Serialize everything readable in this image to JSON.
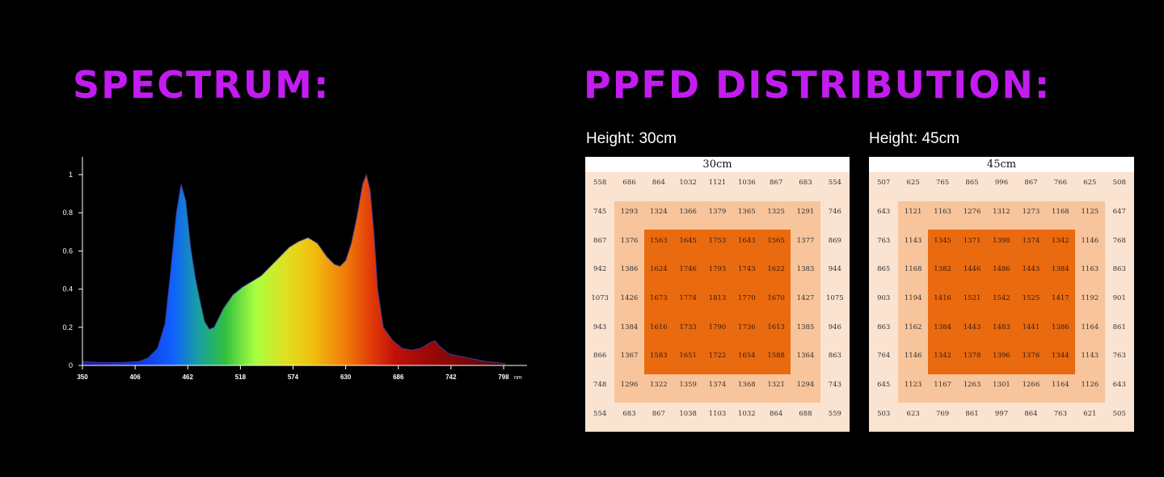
{
  "spectrum": {
    "heading": "SPECTRUM:",
    "chart_data": {
      "type": "area",
      "x_ticks": [
        "350",
        "406",
        "462",
        "518",
        "574",
        "630",
        "686",
        "742",
        "798"
      ],
      "x_unit": "nm",
      "y_ticks": [
        "0",
        "0.2",
        "0.4",
        "0.6",
        "0.8",
        "1"
      ],
      "xlim": [
        350,
        810
      ],
      "ylim": [
        0,
        1
      ],
      "x": [
        350,
        370,
        390,
        410,
        420,
        430,
        438,
        444,
        450,
        455,
        460,
        465,
        470,
        475,
        480,
        485,
        490,
        500,
        510,
        520,
        530,
        540,
        550,
        560,
        570,
        580,
        590,
        600,
        610,
        618,
        624,
        630,
        636,
        642,
        648,
        652,
        656,
        660,
        664,
        670,
        680,
        690,
        700,
        710,
        720,
        725,
        730,
        740,
        750,
        760,
        780,
        800
      ],
      "y": [
        0.02,
        0.015,
        0.015,
        0.02,
        0.04,
        0.09,
        0.22,
        0.5,
        0.8,
        0.95,
        0.86,
        0.62,
        0.46,
        0.34,
        0.23,
        0.19,
        0.2,
        0.3,
        0.37,
        0.41,
        0.44,
        0.47,
        0.52,
        0.57,
        0.62,
        0.65,
        0.67,
        0.64,
        0.57,
        0.53,
        0.52,
        0.55,
        0.64,
        0.78,
        0.95,
        1.0,
        0.92,
        0.7,
        0.4,
        0.2,
        0.13,
        0.09,
        0.08,
        0.09,
        0.12,
        0.13,
        0.1,
        0.06,
        0.05,
        0.04,
        0.02,
        0.01
      ]
    }
  },
  "ppfd": {
    "heading": "PPFD DISTRIBUTION:",
    "grids": [
      {
        "height_label": "Height: 30cm",
        "title": "30cm",
        "chart_data": {
          "type": "heatmap",
          "rows": [
            [
              558,
              686,
              864,
              1032,
              1121,
              1036,
              867,
              683,
              554
            ],
            [
              745,
              1293,
              1324,
              1366,
              1379,
              1365,
              1325,
              1291,
              746
            ],
            [
              867,
              1376,
              1563,
              1645,
              1753,
              1643,
              1565,
              1377,
              869
            ],
            [
              942,
              1386,
              1624,
              1746,
              1793,
              1743,
              1622,
              1383,
              944
            ],
            [
              1073,
              1426,
              1673,
              1774,
              1813,
              1770,
              1670,
              1427,
              1075
            ],
            [
              943,
              1384,
              1616,
              1733,
              1790,
              1736,
              1613,
              1385,
              946
            ],
            [
              866,
              1367,
              1583,
              1651,
              1722,
              1654,
              1588,
              1364,
              863
            ],
            [
              748,
              1296,
              1322,
              1359,
              1374,
              1368,
              1321,
              1294,
              743
            ],
            [
              554,
              683,
              867,
              1038,
              1103,
              1032,
              864,
              688,
              559
            ]
          ]
        }
      },
      {
        "height_label": "Height: 45cm",
        "title": "45cm",
        "chart_data": {
          "type": "heatmap",
          "rows": [
            [
              507,
              625,
              765,
              865,
              996,
              867,
              766,
              625,
              508
            ],
            [
              643,
              1121,
              1163,
              1276,
              1312,
              1273,
              1168,
              1125,
              647
            ],
            [
              763,
              1143,
              1345,
              1371,
              1398,
              1374,
              1342,
              1146,
              768
            ],
            [
              865,
              1168,
              1382,
              1446,
              1486,
              1443,
              1384,
              1163,
              863
            ],
            [
              903,
              1194,
              1416,
              1521,
              1542,
              1525,
              1417,
              1192,
              901
            ],
            [
              863,
              1162,
              1384,
              1443,
              1483,
              1441,
              1386,
              1164,
              861
            ],
            [
              764,
              1146,
              1342,
              1378,
              1396,
              1376,
              1344,
              1143,
              763
            ],
            [
              645,
              1123,
              1167,
              1263,
              1301,
              1266,
              1164,
              1126,
              643
            ],
            [
              503,
              623,
              769,
              861,
              997,
              864,
              763,
              621,
              505
            ]
          ]
        }
      }
    ]
  }
}
